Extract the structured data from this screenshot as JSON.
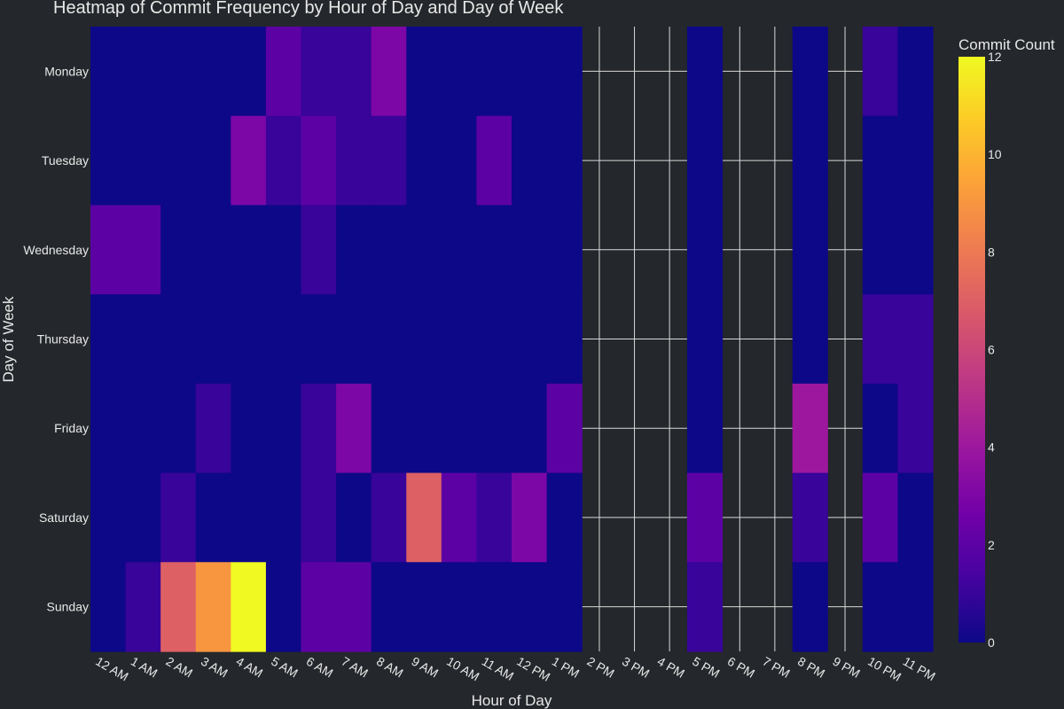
{
  "chart_data": {
    "type": "heatmap",
    "title": "Heatmap of Commit Frequency by Hour of Day and Day of Week",
    "xlabel": "Hour of Day",
    "ylabel": "Day of Week",
    "x": [
      "12 AM",
      "1 AM",
      "2 AM",
      "3 AM",
      "4 AM",
      "5 AM",
      "6 AM",
      "7 AM",
      "8 AM",
      "9 AM",
      "10 AM",
      "11 AM",
      "12 PM",
      "1 PM",
      "2 PM",
      "3 PM",
      "4 PM",
      "5 PM",
      "6 PM",
      "7 PM",
      "8 PM",
      "9 PM",
      "10 PM",
      "11 PM"
    ],
    "y": [
      "Monday",
      "Tuesday",
      "Wednesday",
      "Thursday",
      "Friday",
      "Saturday",
      "Sunday"
    ],
    "z": [
      [
        0,
        0,
        0,
        0,
        0,
        2,
        1,
        1,
        3,
        0,
        0,
        0,
        0,
        0,
        null,
        null,
        null,
        0,
        null,
        null,
        0,
        null,
        1,
        0
      ],
      [
        0,
        0,
        0,
        0,
        3,
        1,
        2,
        1,
        1,
        0,
        0,
        2,
        0,
        0,
        null,
        null,
        null,
        0,
        null,
        null,
        0,
        null,
        0,
        0
      ],
      [
        2,
        2,
        0,
        0,
        0,
        0,
        1,
        0,
        0,
        0,
        0,
        0,
        0,
        0,
        null,
        null,
        null,
        0,
        null,
        null,
        0,
        null,
        0,
        0
      ],
      [
        0,
        0,
        0,
        0,
        0,
        0,
        0,
        0,
        0,
        0,
        0,
        0,
        0,
        0,
        null,
        null,
        null,
        0,
        null,
        null,
        0,
        null,
        1,
        1
      ],
      [
        0,
        0,
        0,
        1,
        0,
        0,
        1,
        3,
        0,
        0,
        0,
        0,
        0,
        2,
        null,
        null,
        null,
        0,
        null,
        null,
        4,
        null,
        0,
        1
      ],
      [
        0,
        0,
        1,
        0,
        0,
        0,
        1,
        0,
        1,
        7,
        2,
        1,
        3,
        0,
        null,
        null,
        null,
        2,
        null,
        null,
        1,
        null,
        2,
        0
      ],
      [
        0,
        1,
        7,
        9,
        12,
        0,
        2,
        2,
        0,
        0,
        0,
        0,
        0,
        0,
        null,
        null,
        null,
        1,
        null,
        null,
        0,
        null,
        0,
        0
      ]
    ],
    "zmin": 0,
    "zmax": 12,
    "colorscale": "plasma",
    "colorbar": {
      "title": "Commit Count",
      "ticks": [
        "0",
        "2",
        "4",
        "6",
        "8",
        "10",
        "12"
      ]
    },
    "grid": true,
    "colors": {
      "background": "#24272b",
      "gridline": "#d8d8d8",
      "text": "#e8e8e8"
    }
  }
}
